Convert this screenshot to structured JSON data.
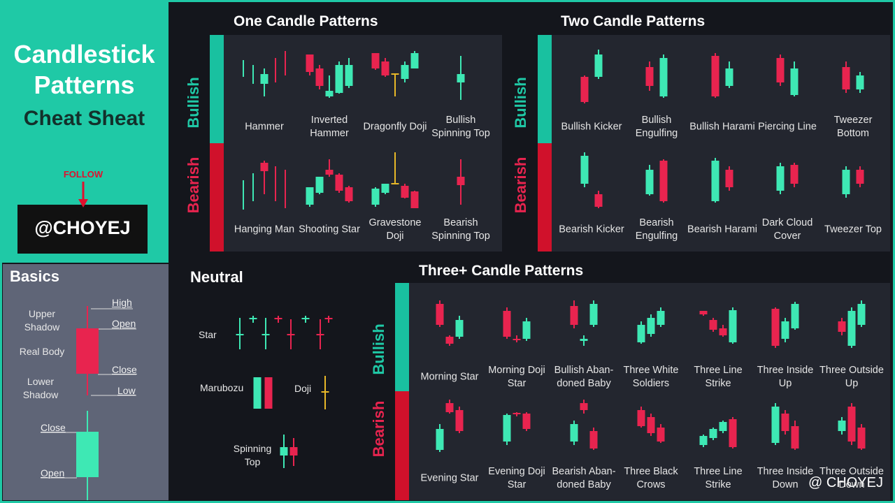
{
  "header": {
    "title": "Candlestick Patterns",
    "subtitle": "Cheat Sheat",
    "follow": "FOLLOW",
    "handle": "@CHOYEJ"
  },
  "basics": {
    "title": "Basics",
    "upper_shadow": "Upper Shadow",
    "real_body": "Real Body",
    "lower_shadow": "Lower Shadow",
    "high": "High",
    "open": "Open",
    "close": "Close",
    "low": "Low",
    "bull_close": "Close",
    "bull_open": "Open"
  },
  "one_candle": {
    "title": "One Candle Patterns",
    "bullish_label": "Bullish",
    "bearish_label": "Bearish",
    "bullish": [
      "Hammer",
      "Inverted Hammer",
      "Dragonfly Doji",
      "Bullish Spinning Top"
    ],
    "bearish": [
      "Hanging Man",
      "Shooting Star",
      "Gravestone Doji",
      "Bearish Spinning Top"
    ]
  },
  "two_candle": {
    "title": "Two Candle Patterns",
    "bullish_label": "Bullish",
    "bearish_label": "Bearish",
    "bullish": [
      "Bullish Kicker",
      "Bullish Engulfing",
      "Bullish Harami",
      "Piercing Line",
      "Tweezer Bottom"
    ],
    "bearish": [
      "Bearish Kicker",
      "Bearish Engulfing",
      "Bearish Harami",
      "Dark Cloud Cover",
      "Tweezer Top"
    ]
  },
  "neutral": {
    "title": "Neutral",
    "star": "Star",
    "marubozu": "Marubozu",
    "doji": "Doji",
    "spinning_top": "Spinning Top"
  },
  "three_candle": {
    "title": "Three+ Candle Patterns",
    "bullish_label": "Bullish",
    "bearish_label": "Bearish",
    "bullish": [
      "Morning Star",
      "Morning Doji Star",
      "Bullish Aban-doned Baby",
      "Three White Soldiers",
      "Three Line Strike",
      "Three Inside Up",
      "Three Outside Up"
    ],
    "bearish": [
      "Evening Star",
      "Evening Doji Star",
      "Bearish Aban-doned Baby",
      "Three Black Crows",
      "Three Line Strike",
      "Three Inside Down",
      "Three Outside Down"
    ]
  },
  "watermark": "@ CHOYEJ"
}
